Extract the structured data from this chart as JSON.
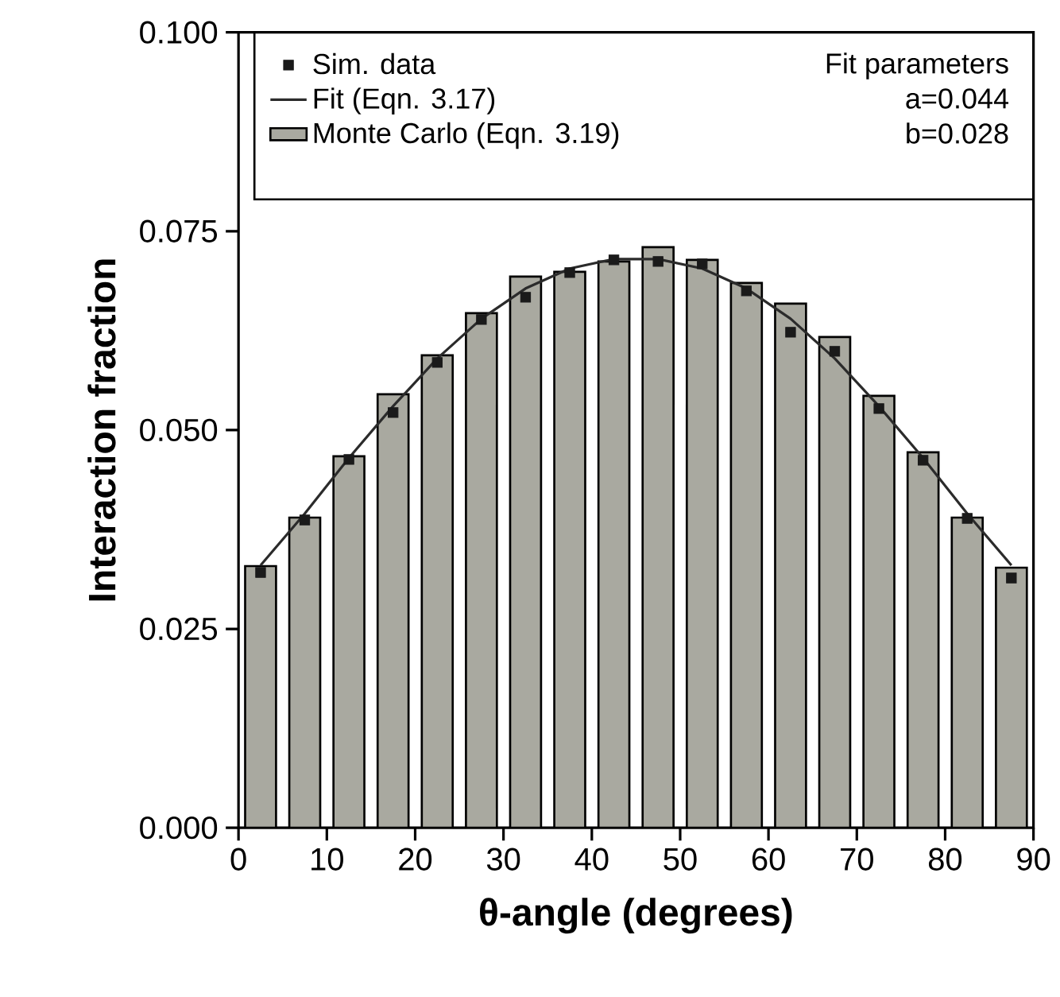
{
  "chart_data": {
    "type": "bar",
    "xlabel": "θ-angle (degrees)",
    "ylabel": "Interaction fraction",
    "x": [
      2.5,
      7.5,
      12.5,
      17.5,
      22.5,
      27.5,
      32.5,
      37.5,
      42.5,
      47.5,
      52.5,
      57.5,
      62.5,
      67.5,
      72.5,
      77.5,
      82.5,
      87.5
    ],
    "series": [
      {
        "name": "Monte Carlo (Eqn. 3.19)",
        "color": "#a9a9a0",
        "values": [
          0.0329,
          0.039,
          0.0467,
          0.0545,
          0.0594,
          0.0647,
          0.0693,
          0.0699,
          0.0712,
          0.073,
          0.0714,
          0.0685,
          0.0659,
          0.0617,
          0.0543,
          0.0472,
          0.039,
          0.0327
        ]
      },
      {
        "name": "Fit (Eqn. 3.17)",
        "type": "line",
        "color": "#2b2b2b",
        "marker": "none",
        "line_style": "solid",
        "values": [
          0.033,
          0.0395,
          0.0465,
          0.053,
          0.059,
          0.064,
          0.0678,
          0.0703,
          0.0715,
          0.0715,
          0.0703,
          0.0678,
          0.064,
          0.059,
          0.053,
          0.0465,
          0.0395,
          0.033
        ]
      },
      {
        "name": "Sim. data",
        "type": "scatter",
        "color": "#1a1a1a",
        "marker": "square",
        "values": [
          0.0321,
          0.0387,
          0.0463,
          0.0522,
          0.0585,
          0.0639,
          0.0667,
          0.0698,
          0.0714,
          0.0712,
          0.0709,
          0.0675,
          0.0623,
          0.0599,
          0.0527,
          0.0462,
          0.0389,
          0.0314
        ]
      }
    ],
    "xlim": [
      0,
      90
    ],
    "xticks": [
      0,
      10,
      20,
      30,
      40,
      50,
      60,
      70,
      80,
      90
    ],
    "ylim": [
      0,
      0.1
    ],
    "yticks": [
      {
        "value": 0,
        "label": "0.000"
      },
      {
        "value": 0.025,
        "label": "0.025"
      },
      {
        "value": 0.05,
        "label": "0.050"
      },
      {
        "value": 0.075,
        "label": "0.075"
      },
      {
        "value": 0.1,
        "label": "0.100"
      }
    ],
    "annotations": [
      "Fit parameters",
      "a=0.044",
      "b=0.028"
    ],
    "grid": false,
    "legend": "top"
  }
}
